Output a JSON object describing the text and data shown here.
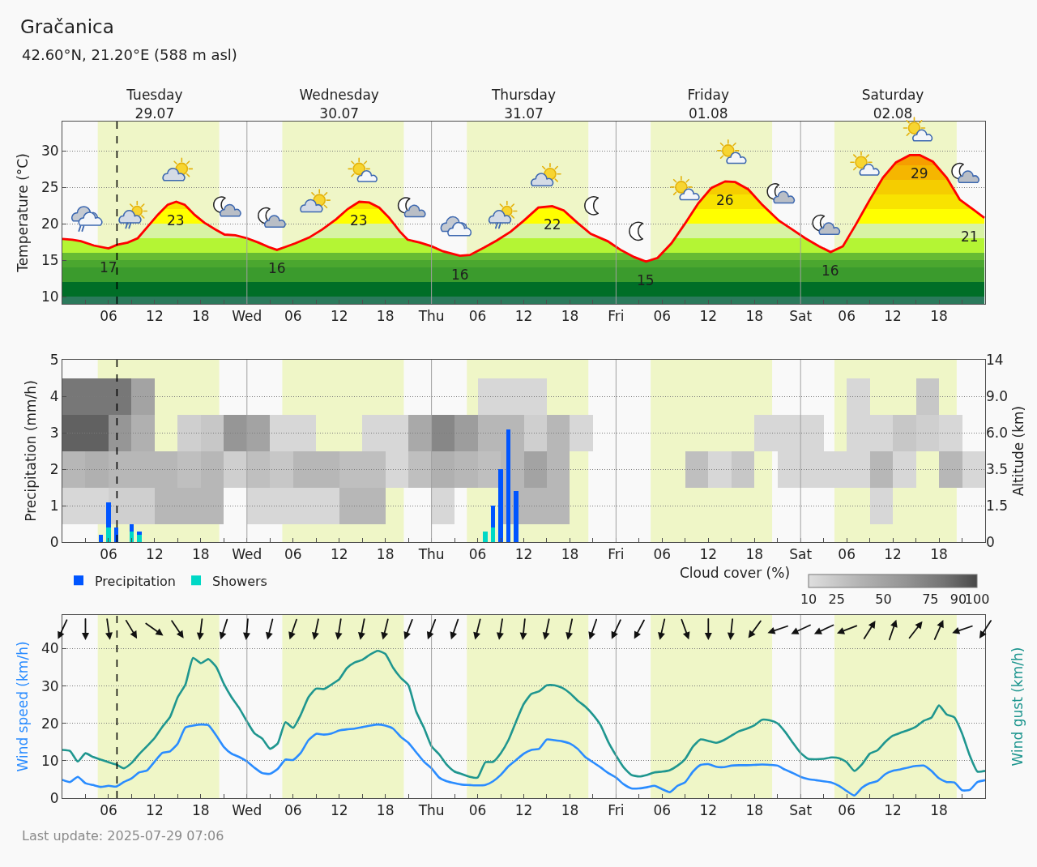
{
  "chart_data": [
    {
      "type": "area",
      "title": "Gračanica",
      "subtitle": "42.60°N, 21.20°E (588 m asl)",
      "ylabel": "Temperature (°C)",
      "x": [
        "2025-07-29T00:00",
        "2025-07-29T01:18",
        "2025-07-29T02:24",
        "2025-07-29T04:06",
        "2025-07-29T06:00",
        "2025-07-29T07:06",
        "2025-07-29T08:30",
        "2025-07-29T09:48",
        "2025-07-29T11:06",
        "2025-07-29T12:24",
        "2025-07-29T13:42",
        "2025-07-29T14:48",
        "2025-07-29T15:54",
        "2025-07-29T17:12",
        "2025-07-29T18:30",
        "2025-07-29T19:54",
        "2025-07-29T21:06",
        "2025-07-29T22:30",
        "2025-07-30T00:00",
        "2025-07-30T01:30",
        "2025-07-30T02:48",
        "2025-07-30T03:54",
        "2025-07-30T05:00",
        "2025-07-30T06:18",
        "2025-07-30T08:06",
        "2025-07-30T09:48",
        "2025-07-30T11:36",
        "2025-07-30T13:06",
        "2025-07-30T14:36",
        "2025-07-30T15:54",
        "2025-07-30T17:12",
        "2025-07-30T18:30",
        "2025-07-30T19:54",
        "2025-07-30T20:54",
        "2025-07-30T22:30",
        "2025-07-31T00:00",
        "2025-07-31T01:30",
        "2025-07-31T03:42",
        "2025-07-31T05:00",
        "2025-07-31T06:48",
        "2025-07-31T08:30",
        "2025-07-31T10:18",
        "2025-07-31T12:00",
        "2025-07-31T13:54",
        "2025-07-31T15:42",
        "2025-07-31T17:12",
        "2025-07-31T19:00",
        "2025-07-31T20:42",
        "2025-07-31T22:54",
        "2025-08-01T00:36",
        "2025-08-01T02:24",
        "2025-08-01T03:54",
        "2025-08-01T05:24",
        "2025-08-01T07:12",
        "2025-08-01T08:54",
        "2025-08-01T10:42",
        "2025-08-01T12:24",
        "2025-08-01T14:12",
        "2025-08-01T15:30",
        "2025-08-01T17:12",
        "2025-08-01T19:00",
        "2025-08-01T21:12",
        "2025-08-01T22:54",
        "2025-08-02T00:36",
        "2025-08-02T02:24",
        "2025-08-02T03:54",
        "2025-08-02T05:30",
        "2025-08-02T07:12",
        "2025-08-02T08:54",
        "2025-08-02T10:42",
        "2025-08-02T12:24",
        "2025-08-02T14:12",
        "2025-08-02T15:30",
        "2025-08-02T17:12",
        "2025-08-02T19:00",
        "2025-08-02T20:42",
        "2025-08-02T22:30",
        "2025-08-02T23:54"
      ],
      "series": [
        {
          "color": "#ff0000",
          "values": [
            17.9,
            17.8,
            17.6,
            17.0,
            16.6,
            17.1,
            17.4,
            18.0,
            19.6,
            21.2,
            22.6,
            23.0,
            22.6,
            21.2,
            20.1,
            19.2,
            18.5,
            18.4,
            18.0,
            17.4,
            16.8,
            16.4,
            16.8,
            17.3,
            18.1,
            19.2,
            20.6,
            22.0,
            23.0,
            22.9,
            22.2,
            20.8,
            18.9,
            17.8,
            17.4,
            16.9,
            16.2,
            15.6,
            15.7,
            16.7,
            17.7,
            18.9,
            20.4,
            22.2,
            22.4,
            21.8,
            20.1,
            18.6,
            17.6,
            16.4,
            15.4,
            14.8,
            15.3,
            17.3,
            19.9,
            22.8,
            24.9,
            25.8,
            25.7,
            24.7,
            22.6,
            20.4,
            19.2,
            18.0,
            16.9,
            16.1,
            16.9,
            19.9,
            23.1,
            26.3,
            28.4,
            29.4,
            29.4,
            28.5,
            26.3,
            23.3,
            21.9,
            20.8
          ],
          "value_labels": [
            null,
            null,
            null,
            null,
            "17",
            null,
            null,
            null,
            null,
            null,
            null,
            "23",
            null,
            null,
            null,
            null,
            null,
            null,
            null,
            null,
            null,
            "16",
            null,
            null,
            null,
            null,
            null,
            null,
            "23",
            null,
            null,
            null,
            null,
            null,
            null,
            null,
            null,
            "16",
            null,
            null,
            null,
            null,
            null,
            null,
            "22",
            null,
            null,
            null,
            null,
            null,
            null,
            "15",
            null,
            null,
            null,
            null,
            null,
            "26",
            null,
            null,
            null,
            null,
            null,
            null,
            null,
            "16",
            null,
            null,
            null,
            null,
            null,
            null,
            "29",
            null,
            null,
            null,
            null,
            "21"
          ]
        }
      ],
      "xlim": [
        "2025-07-29T00:00",
        "2025-08-03T00:00"
      ],
      "xticks": [
        {
          "value": "2025-07-29T03:00",
          "label": null
        },
        {
          "value": "2025-07-29T06:00",
          "label": "06"
        },
        {
          "value": "2025-07-29T09:00",
          "label": null
        },
        {
          "value": "2025-07-29T12:00",
          "label": "12"
        },
        {
          "value": "2025-07-29T15:00",
          "label": null
        },
        {
          "value": "2025-07-29T18:00",
          "label": "18"
        },
        {
          "value": "2025-07-29T21:00",
          "label": null
        },
        {
          "value": "2025-07-30T00:00",
          "label": "Wed"
        },
        {
          "value": "2025-07-30T03:00",
          "label": null
        },
        {
          "value": "2025-07-30T06:00",
          "label": "06"
        },
        {
          "value": "2025-07-30T09:00",
          "label": null
        },
        {
          "value": "2025-07-30T12:00",
          "label": "12"
        },
        {
          "value": "2025-07-30T15:00",
          "label": null
        },
        {
          "value": "2025-07-30T18:00",
          "label": "18"
        },
        {
          "value": "2025-07-30T21:00",
          "label": null
        },
        {
          "value": "2025-07-31T00:00",
          "label": "Thu"
        },
        {
          "value": "2025-07-31T03:00",
          "label": null
        },
        {
          "value": "2025-07-31T06:00",
          "label": "06"
        },
        {
          "value": "2025-07-31T09:00",
          "label": null
        },
        {
          "value": "2025-07-31T12:00",
          "label": "12"
        },
        {
          "value": "2025-07-31T15:00",
          "label": null
        },
        {
          "value": "2025-07-31T18:00",
          "label": "18"
        },
        {
          "value": "2025-07-31T21:00",
          "label": null
        },
        {
          "value": "2025-08-01T00:00",
          "label": "Fri"
        },
        {
          "value": "2025-08-01T03:00",
          "label": null
        },
        {
          "value": "2025-08-01T06:00",
          "label": "06"
        },
        {
          "value": "2025-08-01T09:00",
          "label": null
        },
        {
          "value": "2025-08-01T12:00",
          "label": "12"
        },
        {
          "value": "2025-08-01T15:00",
          "label": null
        },
        {
          "value": "2025-08-01T18:00",
          "label": "18"
        },
        {
          "value": "2025-08-01T21:00",
          "label": null
        },
        {
          "value": "2025-08-02T00:00",
          "label": "Sat"
        },
        {
          "value": "2025-08-02T03:00",
          "label": null
        },
        {
          "value": "2025-08-02T06:00",
          "label": "06"
        },
        {
          "value": "2025-08-02T09:00",
          "label": null
        },
        {
          "value": "2025-08-02T12:00",
          "label": "12"
        },
        {
          "value": "2025-08-02T15:00",
          "label": null
        },
        {
          "value": "2025-08-02T18:00",
          "label": "18"
        },
        {
          "value": "2025-08-02T21:00",
          "label": null
        }
      ],
      "x2lim": [
        "2025-07-29T00:00",
        "2025-08-03T00:00"
      ],
      "x2ticks": [
        {
          "value": "2025-07-29T12:00",
          "label": "Tuesday\n29.07"
        },
        {
          "value": "2025-07-30T12:00",
          "label": "Wednesday\n30.07"
        },
        {
          "value": "2025-07-31T12:00",
          "label": "Thursday\n31.07"
        },
        {
          "value": "2025-08-01T12:00",
          "label": "Friday\n01.08"
        },
        {
          "value": "2025-08-02T12:00",
          "label": "Saturday\n02.08"
        }
      ],
      "ylim": [
        9,
        34
      ],
      "yticks": [
        10,
        15,
        20,
        25,
        30
      ],
      "grid": "y",
      "bands": [
        {
          "axis": "x",
          "from": "2025-07-29T04:36",
          "to": "2025-07-29T20:24",
          "color": "#eff6c7"
        },
        {
          "axis": "x",
          "from": "2025-07-30T04:36",
          "to": "2025-07-30T20:24",
          "color": "#eff6c7"
        },
        {
          "axis": "x",
          "from": "2025-07-31T04:36",
          "to": "2025-07-31T20:24",
          "color": "#eff6c7"
        },
        {
          "axis": "x",
          "from": "2025-08-01T04:30",
          "to": "2025-08-01T20:18",
          "color": "#eff6c7"
        },
        {
          "axis": "x",
          "from": "2025-08-02T04:24",
          "to": "2025-08-02T20:18",
          "color": "#eff6c7"
        }
      ],
      "ref_lines": [
        {
          "axis": "x",
          "value": "2025-07-30T00:00",
          "color": "#a0a0a0"
        },
        {
          "axis": "x",
          "value": "2025-07-31T00:00",
          "color": "#a0a0a0"
        },
        {
          "axis": "x",
          "value": "2025-08-01T00:00",
          "color": "#a0a0a0"
        },
        {
          "axis": "x",
          "value": "2025-08-02T00:00",
          "color": "#a0a0a0"
        },
        {
          "axis": "x",
          "value": "2025-07-29T07:06",
          "color": "#000000",
          "line_style": "dashed"
        }
      ]
    },
    {
      "type": "bar",
      "stacked": true,
      "ylabel": "Precipitation (mm/h)",
      "legend": "bottom left",
      "x": [
        "2025-07-29T05:00",
        "2025-07-29T06:00",
        "2025-07-29T07:00",
        "2025-07-29T09:00",
        "2025-07-29T10:00",
        "2025-07-31T07:00",
        "2025-07-31T08:00",
        "2025-07-31T09:00",
        "2025-07-31T10:00",
        "2025-07-31T11:00"
      ],
      "series": [
        {
          "name": "Showers",
          "color": "#00d8c6",
          "values": [
            null,
            0.4,
            null,
            0.3,
            0.2,
            0.3,
            0.4,
            null,
            null,
            null
          ]
        },
        {
          "name": "Precipitation",
          "color": "#0055ff",
          "values": [
            0.2,
            0.7,
            0.4,
            0.2,
            0.1,
            null,
            0.6,
            2.0,
            3.1,
            1.4
          ]
        }
      ],
      "xlim": [
        "2025-07-29T00:00",
        "2025-08-03T00:00"
      ],
      "xticks": [
        {
          "value": "2025-07-29T03:00",
          "label": null
        },
        {
          "value": "2025-07-29T06:00",
          "label": "06"
        },
        {
          "value": "2025-07-29T09:00",
          "label": null
        },
        {
          "value": "2025-07-29T12:00",
          "label": "12"
        },
        {
          "value": "2025-07-29T15:00",
          "label": null
        },
        {
          "value": "2025-07-29T18:00",
          "label": "18"
        },
        {
          "value": "2025-07-29T21:00",
          "label": null
        },
        {
          "value": "2025-07-30T00:00",
          "label": "Wed"
        },
        {
          "value": "2025-07-30T03:00",
          "label": null
        },
        {
          "value": "2025-07-30T06:00",
          "label": "06"
        },
        {
          "value": "2025-07-30T09:00",
          "label": null
        },
        {
          "value": "2025-07-30T12:00",
          "label": "12"
        },
        {
          "value": "2025-07-30T15:00",
          "label": null
        },
        {
          "value": "2025-07-30T18:00",
          "label": "18"
        },
        {
          "value": "2025-07-30T21:00",
          "label": null
        },
        {
          "value": "2025-07-31T00:00",
          "label": "Thu"
        },
        {
          "value": "2025-07-31T03:00",
          "label": null
        },
        {
          "value": "2025-07-31T06:00",
          "label": "06"
        },
        {
          "value": "2025-07-31T09:00",
          "label": null
        },
        {
          "value": "2025-07-31T12:00",
          "label": "12"
        },
        {
          "value": "2025-07-31T15:00",
          "label": null
        },
        {
          "value": "2025-07-31T18:00",
          "label": "18"
        },
        {
          "value": "2025-07-31T21:00",
          "label": null
        },
        {
          "value": "2025-08-01T00:00",
          "label": "Fri"
        },
        {
          "value": "2025-08-01T03:00",
          "label": null
        },
        {
          "value": "2025-08-01T06:00",
          "label": "06"
        },
        {
          "value": "2025-08-01T09:00",
          "label": null
        },
        {
          "value": "2025-08-01T12:00",
          "label": "12"
        },
        {
          "value": "2025-08-01T15:00",
          "label": null
        },
        {
          "value": "2025-08-01T18:00",
          "label": "18"
        },
        {
          "value": "2025-08-01T21:00",
          "label": null
        },
        {
          "value": "2025-08-02T00:00",
          "label": "Sat"
        },
        {
          "value": "2025-08-02T03:00",
          "label": null
        },
        {
          "value": "2025-08-02T06:00",
          "label": "06"
        },
        {
          "value": "2025-08-02T09:00",
          "label": null
        },
        {
          "value": "2025-08-02T12:00",
          "label": "12"
        },
        {
          "value": "2025-08-02T15:00",
          "label": null
        },
        {
          "value": "2025-08-02T18:00",
          "label": "18"
        },
        {
          "value": "2025-08-02T21:00",
          "label": null
        }
      ],
      "ylim": [
        0,
        5
      ],
      "yticks": [
        0,
        1,
        2,
        3,
        4,
        5
      ],
      "grid": "y",
      "bands": [
        {
          "axis": "x",
          "from": "2025-07-29T04:36",
          "to": "2025-07-29T20:24",
          "color": "#eff6c7"
        },
        {
          "axis": "x",
          "from": "2025-07-30T04:36",
          "to": "2025-07-30T20:24",
          "color": "#eff6c7"
        },
        {
          "axis": "x",
          "from": "2025-07-31T04:36",
          "to": "2025-07-31T20:24",
          "color": "#eff6c7"
        },
        {
          "axis": "x",
          "from": "2025-08-01T04:30",
          "to": "2025-08-01T20:18",
          "color": "#eff6c7"
        },
        {
          "axis": "x",
          "from": "2025-08-02T04:24",
          "to": "2025-08-02T20:18",
          "color": "#eff6c7"
        }
      ],
      "ref_lines": [
        {
          "axis": "x",
          "value": "2025-07-30T00:00",
          "color": "#a0a0a0"
        },
        {
          "axis": "x",
          "value": "2025-07-31T00:00",
          "color": "#a0a0a0"
        },
        {
          "axis": "x",
          "value": "2025-08-01T00:00",
          "color": "#a0a0a0"
        },
        {
          "axis": "x",
          "value": "2025-08-02T00:00",
          "color": "#a0a0a0"
        },
        {
          "axis": "x",
          "value": "2025-07-29T07:06",
          "color": "#000000",
          "line_style": "dashed"
        }
      ]
    },
    {
      "type": "heatmap",
      "ylabel": "Altitude (km)",
      "clabel": "Cloud cover (%)",
      "clim": [
        10,
        100
      ],
      "cticks": [
        10,
        25,
        50,
        75,
        90,
        100
      ],
      "tick_labels": "y",
      "xlim": [
        "2025-07-29T00:00",
        "2025-08-03T00:00"
      ],
      "x": [
        "2025-07-29T01:30",
        "2025-07-29T04:30",
        "2025-07-29T07:30",
        "2025-07-29T10:30",
        "2025-07-29T13:30",
        "2025-07-29T16:30",
        "2025-07-29T19:30",
        "2025-07-29T22:30",
        "2025-07-30T01:30",
        "2025-07-30T04:30",
        "2025-07-30T07:30",
        "2025-07-30T10:30",
        "2025-07-30T13:30",
        "2025-07-30T16:30",
        "2025-07-30T19:30",
        "2025-07-30T22:30",
        "2025-07-31T01:30",
        "2025-07-31T04:30",
        "2025-07-31T07:30",
        "2025-07-31T10:30",
        "2025-07-31T13:30",
        "2025-07-31T16:30",
        "2025-07-31T19:30",
        "2025-07-31T22:30",
        "2025-08-01T01:30",
        "2025-08-01T04:30",
        "2025-08-01T07:30",
        "2025-08-01T10:30",
        "2025-08-01T13:30",
        "2025-08-01T16:30",
        "2025-08-01T19:30",
        "2025-08-01T22:30",
        "2025-08-02T01:30",
        "2025-08-02T04:30",
        "2025-08-02T07:30",
        "2025-08-02T10:30",
        "2025-08-02T13:30",
        "2025-08-02T16:30",
        "2025-08-02T19:30",
        "2025-08-02T22:30"
      ],
      "y_categories": [
        "14",
        "9.0",
        "6.0",
        "3.5",
        "1.5",
        "0"
      ],
      "cells": [
        [
          null,
          null,
          null,
          null,
          null,
          null,
          null,
          null,
          null,
          null,
          null,
          null,
          null,
          null,
          null,
          null,
          null,
          null,
          null,
          null,
          null,
          null,
          null,
          null,
          null,
          null,
          null,
          null,
          null,
          null,
          null,
          null,
          null,
          null,
          null,
          null,
          null,
          null,
          null,
          null
        ],
        [
          80,
          80,
          80,
          50,
          null,
          null,
          null,
          null,
          null,
          null,
          null,
          null,
          null,
          null,
          null,
          null,
          null,
          null,
          15,
          15,
          15,
          null,
          null,
          null,
          null,
          null,
          null,
          null,
          null,
          null,
          null,
          null,
          null,
          null,
          15,
          null,
          null,
          25,
          null,
          null
        ],
        [
          90,
          90,
          60,
          40,
          null,
          20,
          25,
          60,
          50,
          15,
          15,
          null,
          null,
          15,
          15,
          45,
          70,
          55,
          35,
          35,
          20,
          35,
          15,
          null,
          null,
          null,
          null,
          null,
          null,
          null,
          15,
          15,
          15,
          null,
          15,
          15,
          25,
          20,
          15,
          null
        ],
        [
          35,
          40,
          35,
          35,
          35,
          30,
          35,
          20,
          30,
          25,
          35,
          35,
          30,
          30,
          15,
          30,
          40,
          35,
          30,
          35,
          50,
          35,
          null,
          null,
          null,
          null,
          null,
          30,
          15,
          25,
          null,
          15,
          15,
          15,
          15,
          35,
          15,
          null,
          35,
          15
        ],
        [
          15,
          15,
          20,
          20,
          35,
          35,
          35,
          null,
          15,
          15,
          15,
          15,
          35,
          35,
          null,
          null,
          15,
          null,
          null,
          35,
          35,
          35,
          null,
          null,
          null,
          null,
          null,
          null,
          null,
          null,
          null,
          null,
          null,
          null,
          null,
          15,
          null,
          null,
          null,
          null
        ],
        [
          null,
          null,
          null,
          null,
          null,
          null,
          null,
          null,
          null,
          null,
          null,
          null,
          null,
          null,
          null,
          null,
          null,
          null,
          null,
          null,
          null,
          null,
          null,
          null,
          null,
          null,
          null,
          null,
          null,
          null,
          null,
          null,
          null,
          null,
          null,
          null,
          null,
          null,
          null,
          null
        ]
      ]
    },
    {
      "type": "line",
      "ylabel": "Wind speed (km/h)",
      "y2label": "Wind gust (km/h)",
      "annotations": [
        "Last update: 2025-07-29 07:06"
      ],
      "x": [
        "2025-07-29T00:00",
        "2025-07-29T01:00",
        "2025-07-29T02:00",
        "2025-07-29T03:00",
        "2025-07-29T04:00",
        "2025-07-29T05:00",
        "2025-07-29T06:00",
        "2025-07-29T07:00",
        "2025-07-29T08:00",
        "2025-07-29T09:00",
        "2025-07-29T10:00",
        "2025-07-29T11:00",
        "2025-07-29T12:00",
        "2025-07-29T13:00",
        "2025-07-29T14:00",
        "2025-07-29T15:00",
        "2025-07-29T16:00",
        "2025-07-29T17:00",
        "2025-07-29T18:00",
        "2025-07-29T19:00",
        "2025-07-29T20:00",
        "2025-07-29T21:00",
        "2025-07-29T22:00",
        "2025-07-29T23:00",
        "2025-07-30T00:00",
        "2025-07-30T01:00",
        "2025-07-30T02:00",
        "2025-07-30T03:00",
        "2025-07-30T04:00",
        "2025-07-30T05:00",
        "2025-07-30T06:00",
        "2025-07-30T07:00",
        "2025-07-30T08:00",
        "2025-07-30T09:00",
        "2025-07-30T10:00",
        "2025-07-30T11:00",
        "2025-07-30T12:00",
        "2025-07-30T13:00",
        "2025-07-30T14:00",
        "2025-07-30T15:00",
        "2025-07-30T16:00",
        "2025-07-30T17:00",
        "2025-07-30T18:00",
        "2025-07-30T19:00",
        "2025-07-30T20:00",
        "2025-07-30T21:00",
        "2025-07-30T22:00",
        "2025-07-30T23:00",
        "2025-07-31T00:00",
        "2025-07-31T01:00",
        "2025-07-31T02:00",
        "2025-07-31T03:00",
        "2025-07-31T04:00",
        "2025-07-31T05:00",
        "2025-07-31T06:00",
        "2025-07-31T07:00",
        "2025-07-31T08:00",
        "2025-07-31T09:00",
        "2025-07-31T10:00",
        "2025-07-31T11:00",
        "2025-07-31T12:00",
        "2025-07-31T13:00",
        "2025-07-31T14:00",
        "2025-07-31T15:00",
        "2025-07-31T16:00",
        "2025-07-31T17:00",
        "2025-07-31T18:00",
        "2025-07-31T19:00",
        "2025-07-31T20:00",
        "2025-07-31T21:00",
        "2025-07-31T22:00",
        "2025-07-31T23:00",
        "2025-08-01T00:00",
        "2025-08-01T01:00",
        "2025-08-01T02:00",
        "2025-08-01T03:00",
        "2025-08-01T04:00",
        "2025-08-01T05:00",
        "2025-08-01T06:00",
        "2025-08-01T07:00",
        "2025-08-01T08:00",
        "2025-08-01T09:00",
        "2025-08-01T10:00",
        "2025-08-01T11:00",
        "2025-08-01T12:00",
        "2025-08-01T13:00",
        "2025-08-01T14:00",
        "2025-08-01T15:00",
        "2025-08-01T16:00",
        "2025-08-01T17:00",
        "2025-08-01T18:00",
        "2025-08-01T19:00",
        "2025-08-01T20:00",
        "2025-08-01T21:00",
        "2025-08-01T22:00",
        "2025-08-01T23:00",
        "2025-08-02T00:00",
        "2025-08-02T01:00",
        "2025-08-02T02:00",
        "2025-08-02T03:00",
        "2025-08-02T04:00",
        "2025-08-02T05:00",
        "2025-08-02T06:00",
        "2025-08-02T07:00",
        "2025-08-02T08:00",
        "2025-08-02T09:00",
        "2025-08-02T10:00",
        "2025-08-02T11:00",
        "2025-08-02T12:00",
        "2025-08-02T13:00",
        "2025-08-02T14:00",
        "2025-08-02T15:00",
        "2025-08-02T16:00",
        "2025-08-02T17:00",
        "2025-08-02T18:00",
        "2025-08-02T19:00",
        "2025-08-02T20:00",
        "2025-08-02T21:00",
        "2025-08-02T22:00",
        "2025-08-02T23:00",
        "2025-08-03T00:00"
      ],
      "series": [
        {
          "color": "#2a8cff",
          "values": [
            4.9,
            4.3,
            5.7,
            4.0,
            3.5,
            3.0,
            3.3,
            3.1,
            4.3,
            5.3,
            6.9,
            7.4,
            9.8,
            12.1,
            12.5,
            14.6,
            18.9,
            19.4,
            19.7,
            19.5,
            16.8,
            13.7,
            11.9,
            11.0,
            9.8,
            8.1,
            6.7,
            6.5,
            7.8,
            10.3,
            10.2,
            12.1,
            15.5,
            17.2,
            17.0,
            17.3,
            18.1,
            18.4,
            18.6,
            19.0,
            19.4,
            19.7,
            19.4,
            18.6,
            16.4,
            14.8,
            12.3,
            9.8,
            8.0,
            5.5,
            4.5,
            4.0,
            3.6,
            3.5,
            3.4,
            3.5,
            4.5,
            6.2,
            8.5,
            10.2,
            11.9,
            12.9,
            13.2,
            15.7,
            15.5,
            15.2,
            14.6,
            13.2,
            11.0,
            9.6,
            8.2,
            6.7,
            5.5,
            3.7,
            2.6,
            2.6,
            2.9,
            3.3,
            2.4,
            1.6,
            3.3,
            4.3,
            7.1,
            8.9,
            9.1,
            8.4,
            8.3,
            8.7,
            8.8,
            8.8,
            8.9,
            9.0,
            8.9,
            8.7,
            7.6,
            6.7,
            5.7,
            5.1,
            4.8,
            4.5,
            4.2,
            3.3,
            1.9,
            0.7,
            2.8,
            4.0,
            4.6,
            6.4,
            7.3,
            7.7,
            8.2,
            8.6,
            8.7,
            7.3,
            5.3,
            4.3,
            4.2,
            2.1,
            2.2,
            4.3,
            4.8
          ]
        },
        {
          "color": "#1f968f",
          "values": [
            12.9,
            12.6,
            9.8,
            12.0,
            11.0,
            10.3,
            9.6,
            9.0,
            8.0,
            9.4,
            11.8,
            13.9,
            16.1,
            19.1,
            21.7,
            27.0,
            30.4,
            37.5,
            36.1,
            37.2,
            35.1,
            30.6,
            27.0,
            24.1,
            20.5,
            17.3,
            15.9,
            13.2,
            14.6,
            20.3,
            18.8,
            22.3,
            27.0,
            29.3,
            29.2,
            30.4,
            31.8,
            34.8,
            36.3,
            37.0,
            38.4,
            39.4,
            38.6,
            34.9,
            32.2,
            30.2,
            23.2,
            18.9,
            13.9,
            11.7,
            8.9,
            7.1,
            6.4,
            5.7,
            5.5,
            9.6,
            9.7,
            12.0,
            15.5,
            20.5,
            25.2,
            27.9,
            28.6,
            30.2,
            30.2,
            29.5,
            28.1,
            26.1,
            24.5,
            22.3,
            19.5,
            15.0,
            11.4,
            8.2,
            6.2,
            5.8,
            6.2,
            6.9,
            7.1,
            7.5,
            8.7,
            10.5,
            13.8,
            15.7,
            15.3,
            14.8,
            15.5,
            16.7,
            17.9,
            18.6,
            19.5,
            21.0,
            20.8,
            20.0,
            17.7,
            14.8,
            12.1,
            10.5,
            10.4,
            10.5,
            10.9,
            10.7,
            9.6,
            7.3,
            9.1,
            11.9,
            12.8,
            15.0,
            16.7,
            17.5,
            18.2,
            19.1,
            20.7,
            21.5,
            24.8,
            22.4,
            21.6,
            17.3,
            11.4,
            7.1,
            7.3
          ]
        }
      ],
      "xlim": [
        "2025-07-29T00:00",
        "2025-08-03T00:00"
      ],
      "xticks": [
        {
          "value": "2025-07-29T03:00",
          "label": null
        },
        {
          "value": "2025-07-29T06:00",
          "label": "06"
        },
        {
          "value": "2025-07-29T09:00",
          "label": null
        },
        {
          "value": "2025-07-29T12:00",
          "label": "12"
        },
        {
          "value": "2025-07-29T15:00",
          "label": null
        },
        {
          "value": "2025-07-29T18:00",
          "label": "18"
        },
        {
          "value": "2025-07-29T21:00",
          "label": null
        },
        {
          "value": "2025-07-30T00:00",
          "label": "Wed"
        },
        {
          "value": "2025-07-30T03:00",
          "label": null
        },
        {
          "value": "2025-07-30T06:00",
          "label": "06"
        },
        {
          "value": "2025-07-30T09:00",
          "label": null
        },
        {
          "value": "2025-07-30T12:00",
          "label": "12"
        },
        {
          "value": "2025-07-30T15:00",
          "label": null
        },
        {
          "value": "2025-07-30T18:00",
          "label": "18"
        },
        {
          "value": "2025-07-30T21:00",
          "label": null
        },
        {
          "value": "2025-07-31T00:00",
          "label": "Thu"
        },
        {
          "value": "2025-07-31T03:00",
          "label": null
        },
        {
          "value": "2025-07-31T06:00",
          "label": "06"
        },
        {
          "value": "2025-07-31T09:00",
          "label": null
        },
        {
          "value": "2025-07-31T12:00",
          "label": "12"
        },
        {
          "value": "2025-07-31T15:00",
          "label": null
        },
        {
          "value": "2025-07-31T18:00",
          "label": "18"
        },
        {
          "value": "2025-07-31T21:00",
          "label": null
        },
        {
          "value": "2025-08-01T00:00",
          "label": "Fri"
        },
        {
          "value": "2025-08-01T03:00",
          "label": null
        },
        {
          "value": "2025-08-01T06:00",
          "label": "06"
        },
        {
          "value": "2025-08-01T09:00",
          "label": null
        },
        {
          "value": "2025-08-01T12:00",
          "label": "12"
        },
        {
          "value": "2025-08-01T15:00",
          "label": null
        },
        {
          "value": "2025-08-01T18:00",
          "label": "18"
        },
        {
          "value": "2025-08-01T21:00",
          "label": null
        },
        {
          "value": "2025-08-02T00:00",
          "label": "Sat"
        },
        {
          "value": "2025-08-02T03:00",
          "label": null
        },
        {
          "value": "2025-08-02T06:00",
          "label": "06"
        },
        {
          "value": "2025-08-02T09:00",
          "label": null
        },
        {
          "value": "2025-08-02T12:00",
          "label": "12"
        },
        {
          "value": "2025-08-02T15:00",
          "label": null
        },
        {
          "value": "2025-08-02T18:00",
          "label": "18"
        },
        {
          "value": "2025-08-02T21:00",
          "label": null
        }
      ],
      "ylim": [
        0,
        49
      ],
      "yticks": [
        0,
        10,
        20,
        30,
        40
      ],
      "grid": "y",
      "bands": [
        {
          "axis": "x",
          "from": "2025-07-29T04:36",
          "to": "2025-07-29T20:24",
          "color": "#eff6c7"
        },
        {
          "axis": "x",
          "from": "2025-07-30T04:36",
          "to": "2025-07-30T20:24",
          "color": "#eff6c7"
        },
        {
          "axis": "x",
          "from": "2025-07-31T04:36",
          "to": "2025-07-31T20:24",
          "color": "#eff6c7"
        },
        {
          "axis": "x",
          "from": "2025-08-01T04:30",
          "to": "2025-08-01T20:18",
          "color": "#eff6c7"
        },
        {
          "axis": "x",
          "from": "2025-08-02T04:24",
          "to": "2025-08-02T20:18",
          "color": "#eff6c7"
        }
      ],
      "ref_lines": [
        {
          "axis": "x",
          "value": "2025-07-30T00:00",
          "color": "#a0a0a0"
        },
        {
          "axis": "x",
          "value": "2025-07-31T00:00",
          "color": "#a0a0a0"
        },
        {
          "axis": "x",
          "value": "2025-08-01T00:00",
          "color": "#a0a0a0"
        },
        {
          "axis": "x",
          "value": "2025-08-02T00:00",
          "color": "#a0a0a0"
        },
        {
          "axis": "x",
          "value": "2025-07-29T07:06",
          "color": "#000000",
          "line_style": "dashed"
        }
      ]
    }
  ]
}
